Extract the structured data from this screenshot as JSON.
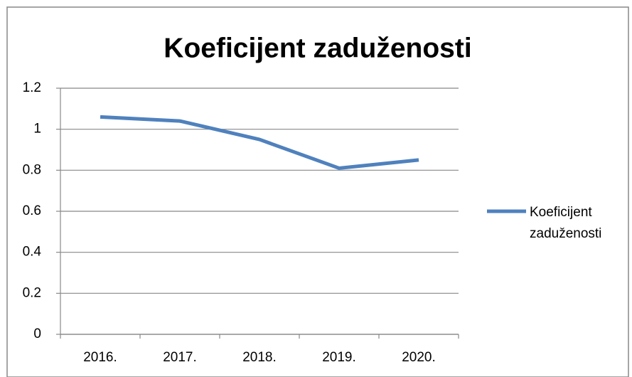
{
  "chart_data": {
    "type": "line",
    "title": "Koeficijent zaduženosti",
    "categories": [
      "2016.",
      "2017.",
      "2018.",
      "2019.",
      "2020."
    ],
    "series": [
      {
        "name": "Koeficijent zaduženosti",
        "color": "#4f81bd",
        "values": [
          1.06,
          1.04,
          0.95,
          0.81,
          0.85
        ]
      }
    ],
    "ylim": [
      0,
      1.2
    ],
    "yticks": [
      0,
      0.2,
      0.4,
      0.6,
      0.8,
      1,
      1.2
    ],
    "grid": true,
    "legend": "right"
  }
}
